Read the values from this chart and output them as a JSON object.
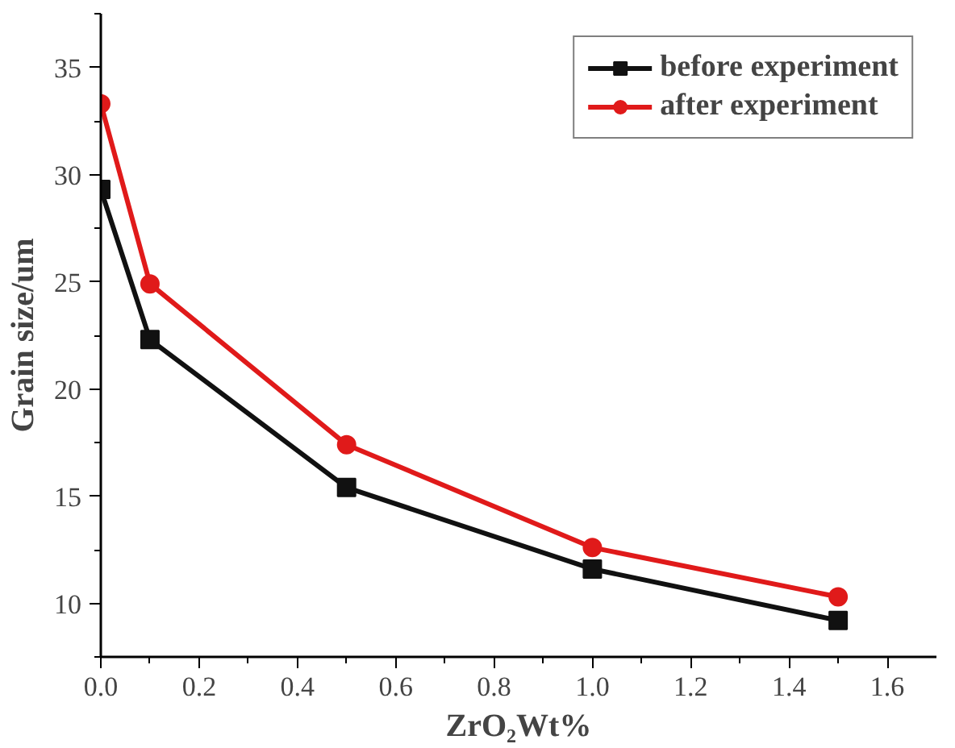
{
  "chart_data": {
    "type": "line",
    "xlabel": "ZrO₂Wt%",
    "ylabel": "Grain size/um",
    "x": [
      0,
      0.1,
      0.5,
      1.0,
      1.5
    ],
    "series": [
      {
        "name": "before experiment",
        "color": "#111111",
        "marker": "square",
        "values": [
          29.3,
          22.3,
          15.4,
          11.6,
          9.2
        ]
      },
      {
        "name": "after experiment",
        "color": "#e01a1a",
        "marker": "circle",
        "values": [
          33.3,
          24.9,
          17.4,
          12.6,
          10.3
        ]
      }
    ],
    "xlim": [
      0,
      1.7
    ],
    "ylim": [
      7.5,
      37.5
    ],
    "xticks": [
      {
        "value": 0,
        "label": "0.0"
      },
      {
        "value": 0.1,
        "label": null
      },
      {
        "value": 0.2,
        "label": "0.2"
      },
      {
        "value": 0.3,
        "label": null
      },
      {
        "value": 0.4,
        "label": "0.4"
      },
      {
        "value": 0.5,
        "label": null
      },
      {
        "value": 0.6,
        "label": "0.6"
      },
      {
        "value": 0.7,
        "label": null
      },
      {
        "value": 0.8,
        "label": "0.8"
      },
      {
        "value": 0.9,
        "label": null
      },
      {
        "value": 1.0,
        "label": "1.0"
      },
      {
        "value": 1.1,
        "label": null
      },
      {
        "value": 1.2,
        "label": "1.2"
      },
      {
        "value": 1.3,
        "label": null
      },
      {
        "value": 1.4,
        "label": "1.4"
      },
      {
        "value": 1.5,
        "label": null
      },
      {
        "value": 1.6,
        "label": "1.6"
      }
    ],
    "yticks": [
      {
        "value": 7.5,
        "label": null
      },
      10,
      {
        "value": 12.5,
        "label": null
      },
      15,
      {
        "value": 17.5,
        "label": null
      },
      20,
      {
        "value": 22.5,
        "label": null
      },
      25,
      {
        "value": 27.5,
        "label": null
      },
      30,
      {
        "value": 32.5,
        "label": null
      },
      35,
      {
        "value": 37.5,
        "label": null
      }
    ],
    "grid": false,
    "legend": "top right",
    "line_style": "solid"
  }
}
